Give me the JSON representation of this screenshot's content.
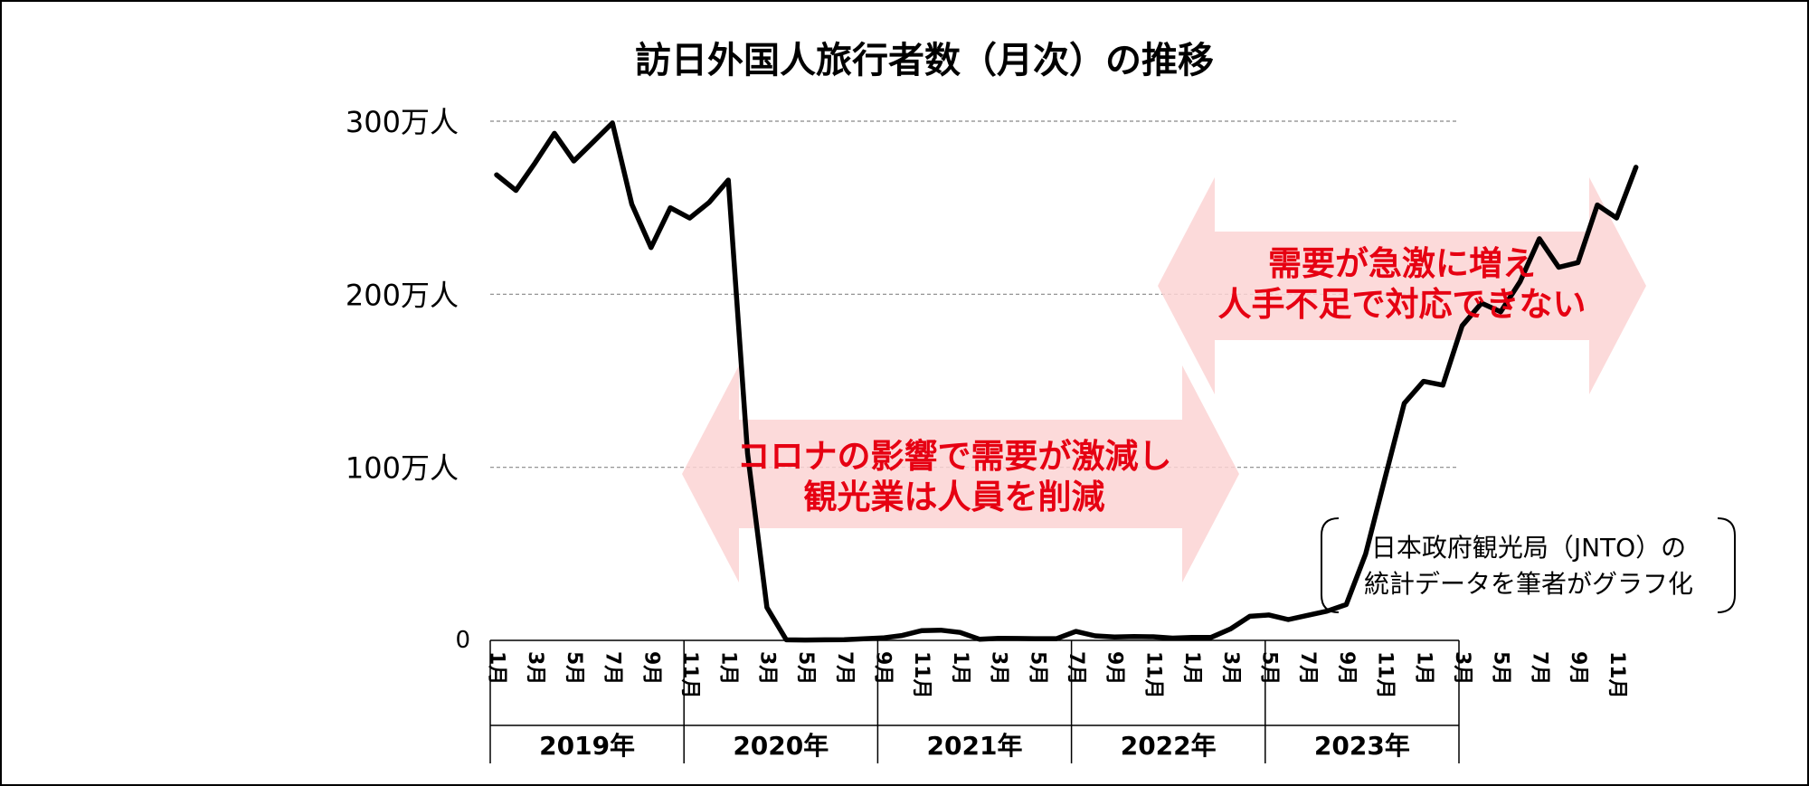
{
  "chart_data": {
    "type": "line",
    "title": "訪日外国人旅行者数（月次）の推移",
    "y_tick_labels": [
      "0",
      "100万人",
      "200万人",
      "300万人"
    ],
    "y_ticks": [
      0,
      100,
      200,
      300
    ],
    "ylim": [
      0,
      300
    ],
    "unit": "万人",
    "years": [
      "2019年",
      "2020年",
      "2021年",
      "2022年",
      "2023年"
    ],
    "month_labels": [
      "1月",
      "3月",
      "5月",
      "7月",
      "9月",
      "11月"
    ],
    "x": [
      "2019-01",
      "2019-02",
      "2019-03",
      "2019-04",
      "2019-05",
      "2019-06",
      "2019-07",
      "2019-08",
      "2019-09",
      "2019-10",
      "2019-11",
      "2019-12",
      "2020-01",
      "2020-02",
      "2020-03",
      "2020-04",
      "2020-05",
      "2020-06",
      "2020-07",
      "2020-08",
      "2020-09",
      "2020-10",
      "2020-11",
      "2020-12",
      "2021-01",
      "2021-02",
      "2021-03",
      "2021-04",
      "2021-05",
      "2021-06",
      "2021-07",
      "2021-08",
      "2021-09",
      "2021-10",
      "2021-11",
      "2021-12",
      "2022-01",
      "2022-02",
      "2022-03",
      "2022-04",
      "2022-05",
      "2022-06",
      "2022-07",
      "2022-08",
      "2022-09",
      "2022-10",
      "2022-11",
      "2022-12",
      "2023-01",
      "2023-02",
      "2023-03",
      "2023-04",
      "2023-05",
      "2023-06",
      "2023-07",
      "2023-08",
      "2023-09",
      "2023-10",
      "2023-11",
      "2023-12"
    ],
    "values": [
      269,
      260,
      276,
      293,
      277,
      288,
      299,
      252,
      227,
      250,
      244,
      253,
      266,
      108,
      19,
      0.3,
      0.2,
      0.3,
      0.4,
      0.9,
      1.4,
      2.8,
      5.6,
      5.9,
      4.6,
      0.7,
      1.2,
      1.1,
      1.0,
      1.0,
      5.2,
      2.6,
      2.0,
      2.2,
      2.1,
      1.3,
      1.7,
      1.7,
      6.6,
      13.9,
      14.7,
      12.0,
      14.5,
      16.9,
      20.7,
      49.9,
      93.5,
      137.0,
      149.7,
      147.5,
      181.8,
      194.9,
      189.9,
      207.3,
      232.1,
      215.6,
      218.3,
      251.6,
      244.1,
      273.4
    ],
    "grid": "dashed horizontal",
    "annotations": [
      {
        "lines": [
          "コロナの影響で需要が激減し",
          "観光業は人員を削減"
        ],
        "span": [
          "2020-03",
          "2022-10"
        ],
        "color": "#e60012"
      },
      {
        "lines": [
          "需要が急激に増え",
          "人手不足で対応できない"
        ],
        "span": [
          "2022-12",
          "2023-12"
        ],
        "color": "#e60012"
      }
    ],
    "source_note": [
      "日本政府観光局（JNTO）の",
      "統計データを筆者がグラフ化"
    ],
    "colors": {
      "line": "#000000",
      "arrow": "#fcd3d3",
      "annotation_text": "#e60012",
      "grid": "#888888"
    }
  }
}
